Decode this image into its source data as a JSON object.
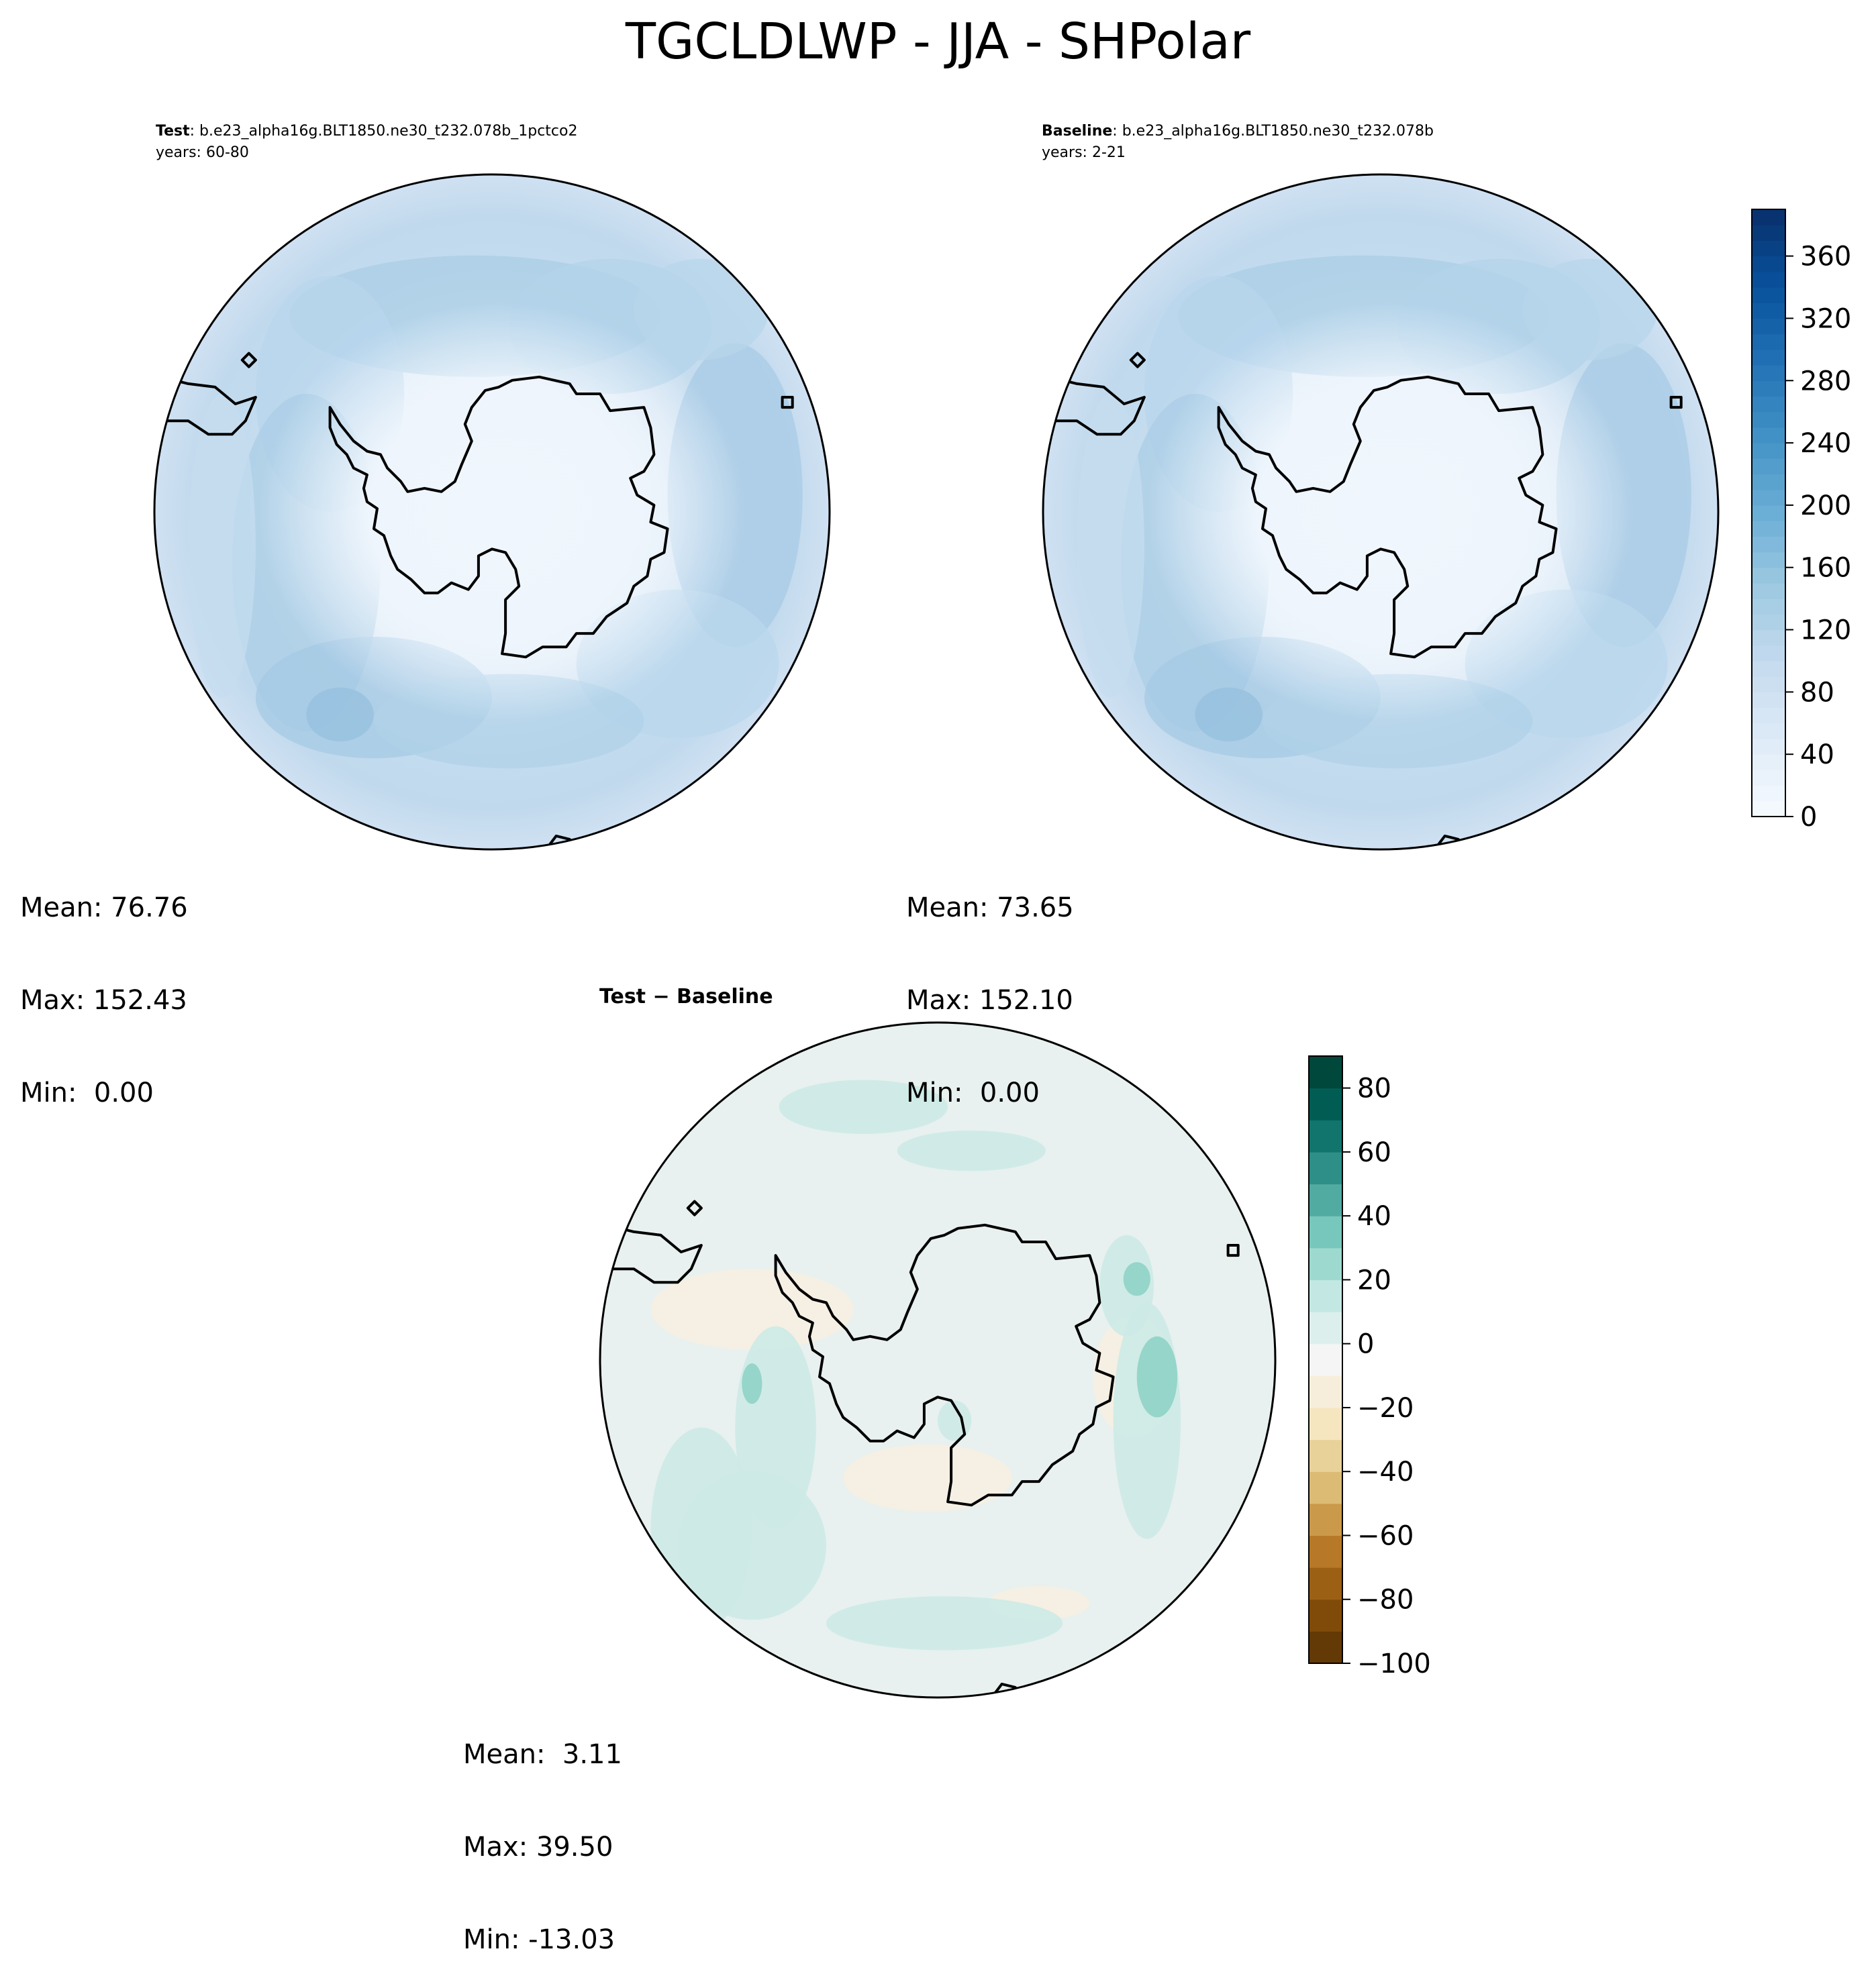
{
  "figure": {
    "suptitle": "TGCLDLWP - JJA - SHPolar"
  },
  "panels": {
    "test": {
      "label": "Test",
      "case": ": b.e23_alpha16g.BLT1850.ne30_t232.078b_1pctco2",
      "years": "years: 60-80",
      "stats": {
        "mean": "Mean: 76.76",
        "max": "Max: 152.43",
        "min": "Min:  0.00"
      }
    },
    "baseline": {
      "label": "Baseline",
      "case": ": b.e23_alpha16g.BLT1850.ne30_t232.078b",
      "years": "years: 2-21",
      "stats": {
        "mean": "Mean: 73.65",
        "max": "Max: 152.10",
        "min": "Min:  0.00"
      }
    },
    "difference": {
      "title": "Test − Baseline",
      "stats": {
        "mean": "Mean:  3.11",
        "max": "Max: 39.50",
        "min": "Min: -13.03"
      }
    }
  },
  "colorbars": {
    "field": {
      "ticks": [
        "0",
        "40",
        "80",
        "120",
        "160",
        "200",
        "240",
        "280",
        "320",
        "360"
      ],
      "tick_values": [
        0,
        40,
        80,
        120,
        160,
        200,
        240,
        280,
        320,
        360
      ],
      "range": [
        0,
        390
      ],
      "colormap": "Blues",
      "colors": [
        "#f7fbff",
        "#deebf7",
        "#c6dbef",
        "#9ecae1",
        "#6baed6",
        "#4292c6",
        "#2171b5",
        "#08519c",
        "#08306b"
      ]
    },
    "difference": {
      "ticks": [
        "80",
        "60",
        "40",
        "20",
        "0",
        "−20",
        "−40",
        "−60",
        "−80",
        "−100"
      ],
      "tick_values": [
        80,
        60,
        40,
        20,
        0,
        -20,
        -40,
        -60,
        -80,
        -100
      ],
      "range": [
        -100,
        90
      ],
      "colormap": "BrBG",
      "colors": [
        "#543005",
        "#8c510a",
        "#bf812d",
        "#dfc27d",
        "#f6e8c3",
        "#f5f5f5",
        "#c7eae5",
        "#80cdc1",
        "#35978f",
        "#01665e",
        "#003c30"
      ]
    }
  },
  "chart_data": [
    {
      "type": "heatmap",
      "title": "Test : b.e23_alpha16g.BLT1850.ne30_t232.078b_1pctco2",
      "subtitle": "years: 60-80",
      "projection": "south polar stereographic",
      "stats": {
        "mean": 76.76,
        "max": 152.43,
        "min": 0.0
      },
      "colorbar_range": [
        0,
        390
      ]
    },
    {
      "type": "heatmap",
      "title": "Baseline : b.e23_alpha16g.BLT1850.ne30_t232.078b",
      "subtitle": "years: 2-21",
      "projection": "south polar stereographic",
      "stats": {
        "mean": 73.65,
        "max": 152.1,
        "min": 0.0
      },
      "colorbar_range": [
        0,
        390
      ]
    },
    {
      "type": "heatmap",
      "title": "Test − Baseline",
      "projection": "south polar stereographic",
      "stats": {
        "mean": 3.11,
        "max": 39.5,
        "min": -13.03
      },
      "colorbar_range": [
        -100,
        90
      ]
    }
  ]
}
